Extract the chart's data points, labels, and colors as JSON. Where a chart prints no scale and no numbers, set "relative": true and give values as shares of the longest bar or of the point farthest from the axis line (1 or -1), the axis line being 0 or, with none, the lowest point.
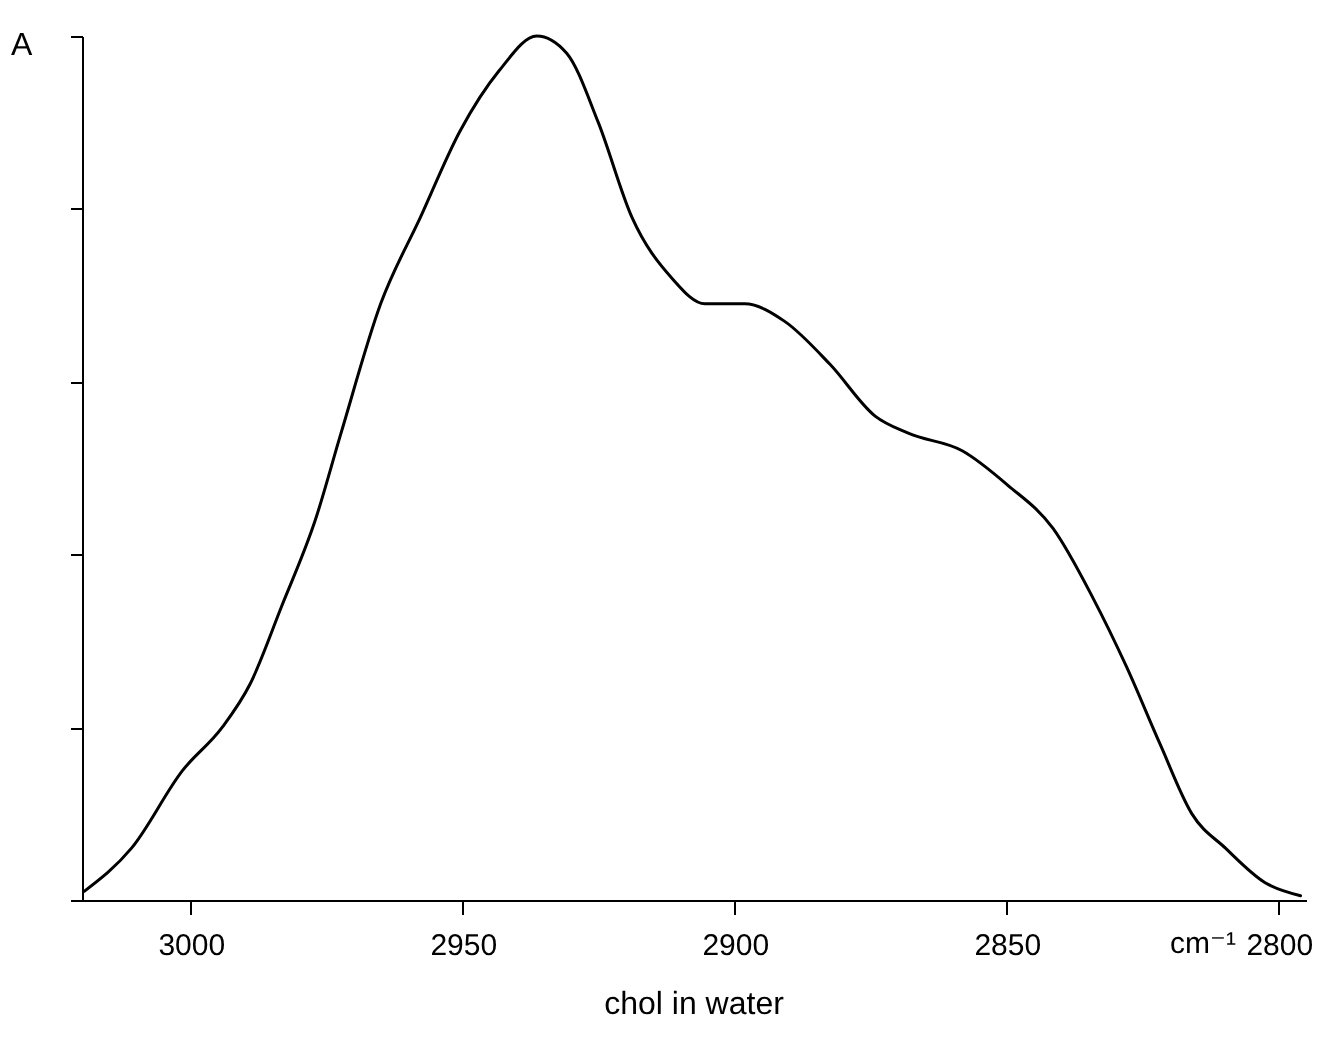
{
  "chart_data": {
    "type": "line",
    "title": "chol in water",
    "xlabel": "cm⁻¹",
    "ylabel": "A",
    "relative": true,
    "tick_labels": "x",
    "grid": false,
    "marker": "none",
    "line_style": "solid",
    "xlim": [
      3020,
      2795
    ],
    "xticks": [
      3000,
      2950,
      2900,
      2850,
      2800
    ],
    "x": [
      3019.6,
      3010.9,
      3001.5,
      2994.2,
      2989.1,
      2983.3,
      2977.1,
      2972.4,
      2965.1,
      2957.8,
      2950.5,
      2943.3,
      2936.4,
      2930.9,
      2925.1,
      2918.9,
      2911.6,
      2905.5,
      2898.2,
      2890.9,
      2882.5,
      2874.2,
      2868.0,
      2858.2,
      2849.8,
      2841.5,
      2834.2,
      2828.0,
      2821.8,
      2816.0,
      2809.8,
      2802.5,
      2796.0
    ],
    "series": [
      {
        "color": "#000000",
        "values": [
          0.01,
          0.06,
          0.15,
          0.2,
          0.25,
          0.34,
          0.44,
          0.54,
          0.69,
          0.79,
          0.89,
          0.96,
          1.0,
          0.98,
          0.9,
          0.79,
          0.72,
          0.69,
          0.69,
          0.67,
          0.62,
          0.56,
          0.54,
          0.52,
          0.48,
          0.43,
          0.35,
          0.27,
          0.18,
          0.1,
          0.06,
          0.02,
          0.005
        ]
      }
    ]
  }
}
